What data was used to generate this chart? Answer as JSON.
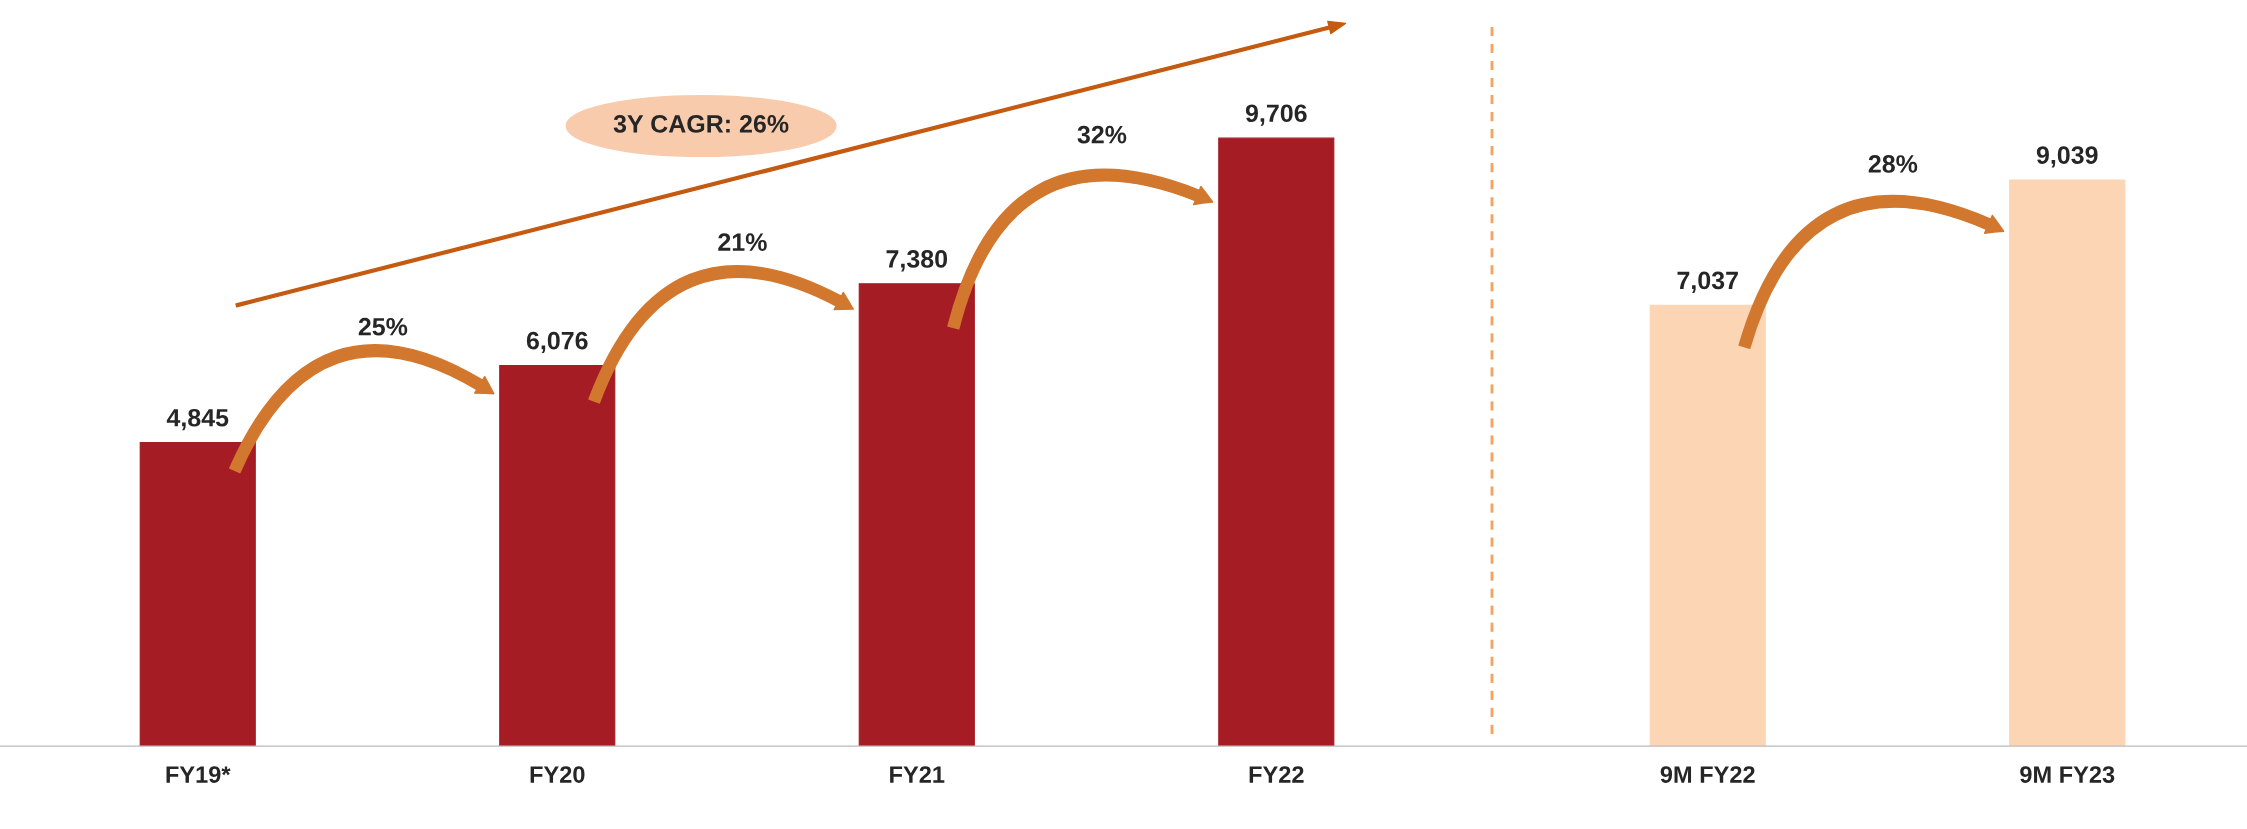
{
  "chart_data": {
    "type": "bar",
    "categories": [
      "FY19*",
      "FY20",
      "FY21",
      "FY22",
      "9M FY22",
      "9M FY23"
    ],
    "values": [
      4845,
      6076,
      7380,
      9706,
      7037,
      9039
    ],
    "colors": [
      "#a61c24",
      "#a61c24",
      "#a61c24",
      "#a61c24",
      "#fcd5b5",
      "#fcd5b5"
    ],
    "data_labels": true,
    "value_labels": [
      "4,845",
      "6,076",
      "7,380",
      "9,706",
      "7,037",
      "9,039"
    ],
    "annotations": [
      "25%",
      "21%",
      "32%",
      "28%",
      "3Y CAGR: 26%"
    ],
    "grid": false
  }
}
